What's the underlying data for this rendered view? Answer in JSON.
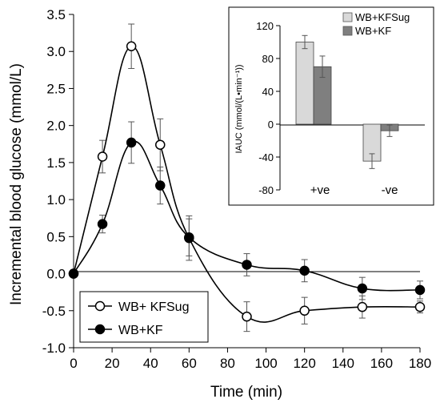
{
  "chart_data": [
    {
      "type": "line",
      "xlabel": "Time (min)",
      "ylabel": "Incremental blood glucose (mmol/L)",
      "xlim": [
        0,
        180
      ],
      "ylim": [
        -1.0,
        3.5
      ],
      "xticks": [
        0,
        20,
        40,
        60,
        80,
        100,
        120,
        140,
        160,
        180
      ],
      "yticks": [
        -1.0,
        -0.5,
        0.0,
        0.5,
        1.0,
        1.5,
        2.0,
        2.5,
        3.0,
        3.5
      ],
      "ytick_labels": [
        "-1.0",
        "-0.5",
        "0.0",
        "0.5",
        "1.0",
        "1.5",
        "2.0",
        "2.5",
        "3.0",
        "3.5"
      ],
      "legend": "bottom-left",
      "series": [
        {
          "name": "WB+ KFSug",
          "marker": "open-circle",
          "x": [
            0,
            15,
            30,
            45,
            60,
            90,
            120,
            150,
            180
          ],
          "y": [
            0.0,
            1.58,
            3.07,
            1.74,
            0.48,
            -0.58,
            -0.5,
            -0.45,
            -0.45
          ],
          "err": [
            0.0,
            0.22,
            0.3,
            0.35,
            0.3,
            0.2,
            0.18,
            0.15,
            0.08
          ]
        },
        {
          "name": "WB+KF",
          "marker": "filled-circle",
          "x": [
            0,
            15,
            30,
            45,
            60,
            90,
            120,
            150,
            180
          ],
          "y": [
            0.0,
            0.67,
            1.77,
            1.19,
            0.49,
            0.12,
            0.04,
            -0.2,
            -0.22
          ],
          "err": [
            0.0,
            0.12,
            0.28,
            0.25,
            0.25,
            0.15,
            0.15,
            0.15,
            0.12
          ]
        }
      ]
    },
    {
      "type": "bar",
      "inset": true,
      "ylabel": "IAUC  (mmol/(L•min⁻¹))",
      "categories": [
        "+ve",
        "-ve"
      ],
      "ylim": [
        -80,
        120
      ],
      "yticks": [
        -80,
        -40,
        0,
        40,
        80,
        120
      ],
      "legend": "top",
      "series": [
        {
          "name": "WB+KFSug",
          "color": "#d9d9d9",
          "values": [
            100,
            -45
          ],
          "err": [
            8,
            9
          ]
        },
        {
          "name": "WB+KF",
          "color": "#7f7f7f",
          "values": [
            70,
            -8
          ],
          "err": [
            13,
            7
          ]
        }
      ]
    }
  ]
}
